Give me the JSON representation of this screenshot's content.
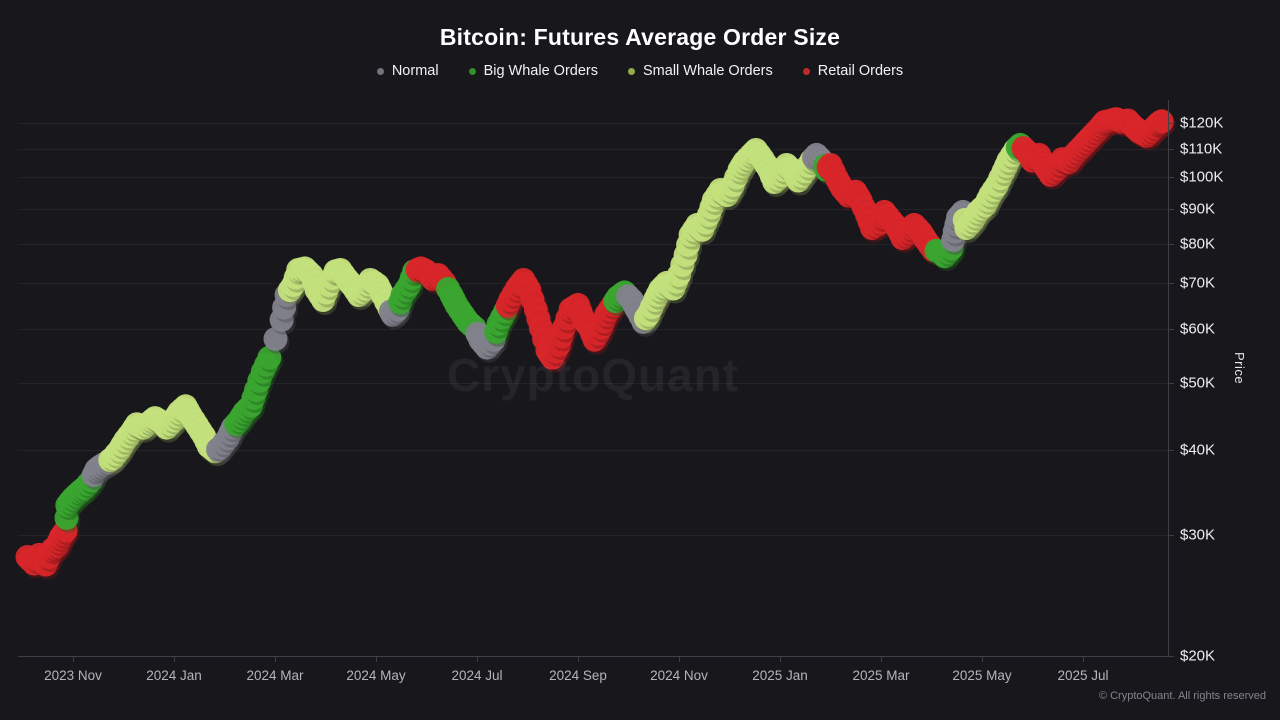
{
  "title": "Bitcoin: Futures Average Order Size",
  "watermark": "CryptoQuant",
  "copyright": "© CryptoQuant. All rights reserved",
  "chart_data": {
    "type": "scatter",
    "title": "Bitcoin: Futures Average Order Size",
    "legend_position": "top",
    "grid": true,
    "y_axis": {
      "label": "Price",
      "scale": "log",
      "unit": "USD",
      "ticks": [
        {
          "label": "$120K",
          "value": 120
        },
        {
          "label": "$110K",
          "value": 110
        },
        {
          "label": "$100K",
          "value": 100
        },
        {
          "label": "$90K",
          "value": 90
        },
        {
          "label": "$80K",
          "value": 80
        },
        {
          "label": "$70K",
          "value": 70
        },
        {
          "label": "$60K",
          "value": 60
        },
        {
          "label": "$50K",
          "value": 50
        },
        {
          "label": "$40K",
          "value": 40
        },
        {
          "label": "$30K",
          "value": 30
        },
        {
          "label": "$20K",
          "value": 20
        }
      ]
    },
    "x_axis": {
      "scale": "time",
      "ticks": [
        {
          "label": "2023 Nov",
          "date": "2023-11-01"
        },
        {
          "label": "2024 Jan",
          "date": "2024-01-01"
        },
        {
          "label": "2024 Mar",
          "date": "2024-03-01"
        },
        {
          "label": "2024 May",
          "date": "2024-05-01"
        },
        {
          "label": "2024 Jul",
          "date": "2024-07-01"
        },
        {
          "label": "2024 Sep",
          "date": "2024-09-01"
        },
        {
          "label": "2024 Nov",
          "date": "2024-11-01"
        },
        {
          "label": "2025 Jan",
          "date": "2025-01-01"
        },
        {
          "label": "2025 Mar",
          "date": "2025-03-01"
        },
        {
          "label": "2025 May",
          "date": "2025-05-01"
        },
        {
          "label": "2025 Jul",
          "date": "2025-07-01"
        }
      ]
    },
    "series": [
      {
        "key": "normal",
        "name": "Normal",
        "color": "#82828c",
        "legend_dot": "#73737b"
      },
      {
        "key": "big_whale",
        "name": "Big Whale Orders",
        "color": "#3aa52f",
        "legend_dot": "#2f8f2b"
      },
      {
        "key": "small_whale",
        "name": "Small Whale Orders",
        "color": "#c3e07c",
        "legend_dot": "#94ad4a"
      },
      {
        "key": "retail",
        "name": "Retail Orders",
        "color": "#d8262a",
        "legend_dot": "#c22a2a"
      }
    ],
    "price_unit_k": true,
    "points": [
      [
        "2023-10-04",
        27.9,
        "retail"
      ],
      [
        "2023-10-08",
        27.3,
        "retail"
      ],
      [
        "2023-10-11",
        28.1,
        "retail"
      ],
      [
        "2023-10-15",
        27.2,
        "retail"
      ],
      [
        "2023-10-19",
        28.6,
        "retail"
      ],
      [
        "2023-10-22",
        29.0,
        "retail"
      ],
      [
        "2023-10-24",
        29.8,
        "retail"
      ],
      [
        "2023-10-27",
        30.5,
        "retail"
      ],
      [
        "2023-10-28",
        33.2,
        "big_whale"
      ],
      [
        "2023-11-01",
        34.0,
        "big_whale"
      ],
      [
        "2023-11-05",
        34.7,
        "big_whale"
      ],
      [
        "2023-11-08",
        35.2,
        "big_whale"
      ],
      [
        "2023-11-12",
        36.1,
        "big_whale"
      ],
      [
        "2023-11-15",
        37.4,
        "normal"
      ],
      [
        "2023-11-18",
        37.9,
        "normal"
      ],
      [
        "2023-11-22",
        38.4,
        "normal"
      ],
      [
        "2023-11-25",
        38.9,
        "small_whale"
      ],
      [
        "2023-11-29",
        40.0,
        "small_whale"
      ],
      [
        "2023-12-02",
        41.3,
        "small_whale"
      ],
      [
        "2023-12-06",
        42.5,
        "small_whale"
      ],
      [
        "2023-12-09",
        43.6,
        "small_whale"
      ],
      [
        "2023-12-13",
        43.1,
        "small_whale"
      ],
      [
        "2023-12-17",
        43.9,
        "small_whale"
      ],
      [
        "2023-12-20",
        44.5,
        "small_whale"
      ],
      [
        "2023-12-24",
        43.9,
        "small_whale"
      ],
      [
        "2023-12-27",
        43.1,
        "small_whale"
      ],
      [
        "2024-01-01",
        44.2,
        "small_whale"
      ],
      [
        "2024-01-04",
        45.4,
        "small_whale"
      ],
      [
        "2024-01-08",
        46.3,
        "small_whale"
      ],
      [
        "2024-01-11",
        44.9,
        "small_whale"
      ],
      [
        "2024-01-15",
        43.4,
        "small_whale"
      ],
      [
        "2024-01-19",
        41.9,
        "small_whale"
      ],
      [
        "2024-01-22",
        40.5,
        "small_whale"
      ],
      [
        "2024-01-26",
        39.8,
        "small_whale"
      ],
      [
        "2024-01-29",
        40.3,
        "normal"
      ],
      [
        "2024-02-03",
        41.6,
        "normal"
      ],
      [
        "2024-02-06",
        43.1,
        "normal"
      ],
      [
        "2024-02-10",
        44.2,
        "big_whale"
      ],
      [
        "2024-02-13",
        45.4,
        "big_whale"
      ],
      [
        "2024-02-17",
        46.4,
        "big_whale"
      ],
      [
        "2024-02-20",
        48.9,
        "big_whale"
      ],
      [
        "2024-02-24",
        52.0,
        "big_whale"
      ],
      [
        "2024-02-28",
        54.5,
        "big_whale"
      ],
      [
        "2024-03-05",
        61.9,
        "normal"
      ],
      [
        "2024-03-08",
        67.3,
        "normal"
      ],
      [
        "2024-03-12",
        69.6,
        "small_whale"
      ],
      [
        "2024-03-15",
        73.2,
        "small_whale"
      ],
      [
        "2024-03-19",
        73.6,
        "small_whale"
      ],
      [
        "2024-03-23",
        72.0,
        "small_whale"
      ],
      [
        "2024-03-26",
        68.5,
        "small_whale"
      ],
      [
        "2024-03-30",
        66.2,
        "small_whale"
      ],
      [
        "2024-04-03",
        69.6,
        "small_whale"
      ],
      [
        "2024-04-07",
        72.9,
        "small_whale"
      ],
      [
        "2024-04-10",
        73.2,
        "small_whale"
      ],
      [
        "2024-04-14",
        71.0,
        "small_whale"
      ],
      [
        "2024-04-17",
        69.6,
        "small_whale"
      ],
      [
        "2024-04-21",
        67.3,
        "small_whale"
      ],
      [
        "2024-04-25",
        68.8,
        "small_whale"
      ],
      [
        "2024-04-28",
        70.8,
        "small_whale"
      ],
      [
        "2024-05-02",
        69.6,
        "small_whale"
      ],
      [
        "2024-05-05",
        67.3,
        "small_whale"
      ],
      [
        "2024-05-09",
        64.4,
        "small_whale"
      ],
      [
        "2024-05-11",
        63.0,
        "normal"
      ],
      [
        "2024-05-14",
        64.1,
        "normal"
      ],
      [
        "2024-05-17",
        67.3,
        "big_whale"
      ],
      [
        "2024-05-21",
        69.6,
        "big_whale"
      ],
      [
        "2024-05-24",
        72.9,
        "big_whale"
      ],
      [
        "2024-05-28",
        73.6,
        "retail"
      ],
      [
        "2024-06-01",
        72.9,
        "retail"
      ],
      [
        "2024-06-05",
        71.0,
        "retail"
      ],
      [
        "2024-06-08",
        72.0,
        "retail"
      ],
      [
        "2024-06-12",
        70.1,
        "retail"
      ],
      [
        "2024-06-16",
        67.3,
        "big_whale"
      ],
      [
        "2024-06-19",
        65.1,
        "big_whale"
      ],
      [
        "2024-06-23",
        63.0,
        "big_whale"
      ],
      [
        "2024-06-26",
        61.5,
        "big_whale"
      ],
      [
        "2024-06-30",
        60.3,
        "big_whale"
      ],
      [
        "2024-07-03",
        57.9,
        "normal"
      ],
      [
        "2024-07-07",
        56.4,
        "normal"
      ],
      [
        "2024-07-11",
        57.9,
        "normal"
      ],
      [
        "2024-07-14",
        61.1,
        "big_whale"
      ],
      [
        "2024-07-18",
        63.7,
        "big_whale"
      ],
      [
        "2024-07-21",
        66.2,
        "retail"
      ],
      [
        "2024-07-25",
        68.8,
        "retail"
      ],
      [
        "2024-07-29",
        70.8,
        "retail"
      ],
      [
        "2024-08-02",
        68.5,
        "retail"
      ],
      [
        "2024-08-06",
        64.1,
        "retail"
      ],
      [
        "2024-08-09",
        60.3,
        "retail"
      ],
      [
        "2024-08-13",
        55.9,
        "retail"
      ],
      [
        "2024-08-16",
        54.5,
        "retail"
      ],
      [
        "2024-08-20",
        56.9,
        "retail"
      ],
      [
        "2024-08-23",
        60.3,
        "retail"
      ],
      [
        "2024-08-27",
        64.1,
        "retail"
      ],
      [
        "2024-09-01",
        65.1,
        "retail"
      ],
      [
        "2024-09-04",
        62.2,
        "retail"
      ],
      [
        "2024-09-08",
        60.3,
        "retail"
      ],
      [
        "2024-09-11",
        57.9,
        "retail"
      ],
      [
        "2024-09-15",
        60.3,
        "retail"
      ],
      [
        "2024-09-18",
        63.0,
        "retail"
      ],
      [
        "2024-09-22",
        65.1,
        "retail"
      ],
      [
        "2024-09-25",
        66.8,
        "big_whale"
      ],
      [
        "2024-09-29",
        67.9,
        "big_whale"
      ],
      [
        "2024-10-03",
        66.2,
        "normal"
      ],
      [
        "2024-10-06",
        64.1,
        "normal"
      ],
      [
        "2024-10-10",
        61.5,
        "normal"
      ],
      [
        "2024-10-13",
        63.0,
        "small_whale"
      ],
      [
        "2024-10-17",
        66.2,
        "small_whale"
      ],
      [
        "2024-10-20",
        68.5,
        "small_whale"
      ],
      [
        "2024-10-24",
        70.1,
        "small_whale"
      ],
      [
        "2024-10-28",
        68.8,
        "small_whale"
      ],
      [
        "2024-11-01",
        72.0,
        "small_whale"
      ],
      [
        "2024-11-05",
        77.0,
        "small_whale"
      ],
      [
        "2024-11-08",
        82.4,
        "small_whale"
      ],
      [
        "2024-11-12",
        85.2,
        "small_whale"
      ],
      [
        "2024-11-15",
        83.8,
        "small_whale"
      ],
      [
        "2024-11-19",
        88.1,
        "small_whale"
      ],
      [
        "2024-11-22",
        92.6,
        "small_whale"
      ],
      [
        "2024-11-26",
        95.8,
        "small_whale"
      ],
      [
        "2024-11-30",
        94.2,
        "small_whale"
      ],
      [
        "2024-12-03",
        97.4,
        "small_whale"
      ],
      [
        "2024-12-07",
        102.5,
        "small_whale"
      ],
      [
        "2024-12-10",
        105.3,
        "small_whale"
      ],
      [
        "2024-12-14",
        107.8,
        "small_whale"
      ],
      [
        "2024-12-17",
        109.6,
        "small_whale"
      ],
      [
        "2024-12-21",
        106.3,
        "small_whale"
      ],
      [
        "2024-12-25",
        102.5,
        "small_whale"
      ],
      [
        "2024-12-28",
        98.4,
        "small_whale"
      ],
      [
        "2025-01-02",
        100.8,
        "small_whale"
      ],
      [
        "2025-01-05",
        104.2,
        "small_whale"
      ],
      [
        "2025-01-09",
        102.0,
        "small_whale"
      ],
      [
        "2025-01-12",
        98.9,
        "small_whale"
      ],
      [
        "2025-01-16",
        102.0,
        "small_whale"
      ],
      [
        "2025-01-20",
        105.8,
        "small_whale"
      ],
      [
        "2025-01-23",
        107.8,
        "normal"
      ],
      [
        "2025-01-27",
        105.3,
        "normal"
      ],
      [
        "2025-01-29",
        102.5,
        "big_whale"
      ],
      [
        "2025-02-01",
        104.2,
        "retail"
      ],
      [
        "2025-02-05",
        99.4,
        "retail"
      ],
      [
        "2025-02-08",
        96.4,
        "retail"
      ],
      [
        "2025-02-12",
        94.0,
        "retail"
      ],
      [
        "2025-02-16",
        95.3,
        "retail"
      ],
      [
        "2025-02-19",
        92.6,
        "retail"
      ],
      [
        "2025-02-23",
        88.1,
        "retail"
      ],
      [
        "2025-02-26",
        84.3,
        "retail"
      ],
      [
        "2025-03-01",
        85.9,
        "retail"
      ],
      [
        "2025-03-03",
        89.0,
        "retail"
      ],
      [
        "2025-03-07",
        86.5,
        "retail"
      ],
      [
        "2025-03-11",
        84.3,
        "retail"
      ],
      [
        "2025-03-14",
        81.5,
        "retail"
      ],
      [
        "2025-03-18",
        83.2,
        "retail"
      ],
      [
        "2025-03-21",
        85.2,
        "retail"
      ],
      [
        "2025-03-25",
        83.2,
        "retail"
      ],
      [
        "2025-03-28",
        81.0,
        "retail"
      ],
      [
        "2025-04-02",
        78.3,
        "retail"
      ],
      [
        "2025-04-06",
        77.9,
        "big_whale"
      ],
      [
        "2025-04-09",
        76.7,
        "big_whale"
      ],
      [
        "2025-04-13",
        78.7,
        "big_whale"
      ],
      [
        "2025-04-15",
        83.3,
        "normal"
      ],
      [
        "2025-04-17",
        87.3,
        "normal"
      ],
      [
        "2025-04-20",
        89.0,
        "normal"
      ],
      [
        "2025-04-22",
        84.3,
        "small_whale"
      ],
      [
        "2025-04-26",
        86.5,
        "small_whale"
      ],
      [
        "2025-04-29",
        89.0,
        "small_whale"
      ],
      [
        "2025-05-03",
        91.1,
        "small_whale"
      ],
      [
        "2025-05-06",
        94.2,
        "small_whale"
      ],
      [
        "2025-05-10",
        97.4,
        "small_whale"
      ],
      [
        "2025-05-14",
        102.0,
        "small_whale"
      ],
      [
        "2025-05-17",
        105.8,
        "small_whale"
      ],
      [
        "2025-05-21",
        109.6,
        "small_whale"
      ],
      [
        "2025-05-24",
        111.5,
        "big_whale"
      ],
      [
        "2025-05-28",
        109.1,
        "retail"
      ],
      [
        "2025-06-01",
        105.8,
        "retail"
      ],
      [
        "2025-06-05",
        107.8,
        "retail"
      ],
      [
        "2025-06-08",
        104.2,
        "retail"
      ],
      [
        "2025-06-12",
        100.8,
        "retail"
      ],
      [
        "2025-06-16",
        103.0,
        "retail"
      ],
      [
        "2025-06-19",
        106.3,
        "retail"
      ],
      [
        "2025-06-23",
        105.3,
        "retail"
      ],
      [
        "2025-06-26",
        107.8,
        "retail"
      ],
      [
        "2025-06-30",
        110.3,
        "retail"
      ],
      [
        "2025-07-03",
        112.6,
        "retail"
      ],
      [
        "2025-07-07",
        115.3,
        "retail"
      ],
      [
        "2025-07-11",
        118.0,
        "retail"
      ],
      [
        "2025-07-14",
        120.4,
        "retail"
      ],
      [
        "2025-07-18",
        121.0,
        "retail"
      ],
      [
        "2025-07-21",
        121.6,
        "retail"
      ],
      [
        "2025-07-25",
        120.4,
        "retail"
      ],
      [
        "2025-07-28",
        121.0,
        "retail"
      ],
      [
        "2025-08-02",
        118.0,
        "retail"
      ],
      [
        "2025-08-05",
        116.4,
        "retail"
      ],
      [
        "2025-08-09",
        115.0,
        "retail"
      ],
      [
        "2025-08-12",
        117.1,
        "retail"
      ],
      [
        "2025-08-16",
        119.7,
        "retail"
      ],
      [
        "2025-08-18",
        120.7,
        "retail"
      ]
    ]
  }
}
